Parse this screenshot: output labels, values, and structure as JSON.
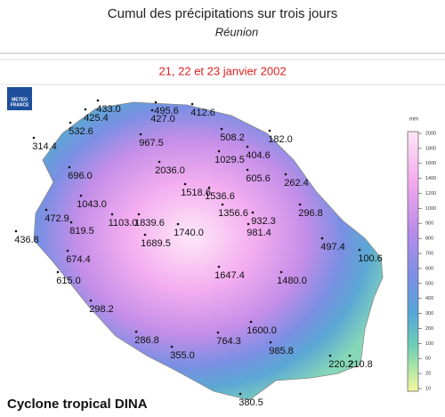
{
  "header": {
    "title": "Cumul des précipitations sur trois jours",
    "subtitle": "Réunion",
    "date": "21, 22 et 23 janvier 2002"
  },
  "logo": {
    "line1": "METEO",
    "line2": "FRANCE"
  },
  "legend": {
    "unit": "mm",
    "ticks": [
      "2000",
      "1800",
      "1600",
      "1400",
      "1200",
      "1000",
      "900",
      "800",
      "700",
      "600",
      "500",
      "400",
      "300",
      "200",
      "100",
      "50",
      "20",
      "10"
    ]
  },
  "stations": [
    "433.0",
    "495.6",
    "412.6",
    "425.4",
    "427.0",
    "532.6",
    "314.4",
    "967.5",
    "508.2",
    "182.0",
    "404.6",
    "1029.5",
    "2036.0",
    "696.0",
    "605.6",
    "262.4",
    "1518.6",
    "1536.6",
    "1356.6",
    "1043.0",
    "932.3",
    "296.8",
    "472.9",
    "1103.0",
    "1839.6",
    "436.8",
    "819.5",
    "674.4",
    "1740.0",
    "981.4",
    "1689.5",
    "497.4",
    "100.6",
    "615.0",
    "1647.4",
    "1480.0",
    "298.2",
    "1600.0",
    "286.8",
    "764.3",
    "985.8",
    "355.0",
    "220.2",
    "210.8",
    "380.5"
  ],
  "footer": "Cyclone tropical DINA"
}
